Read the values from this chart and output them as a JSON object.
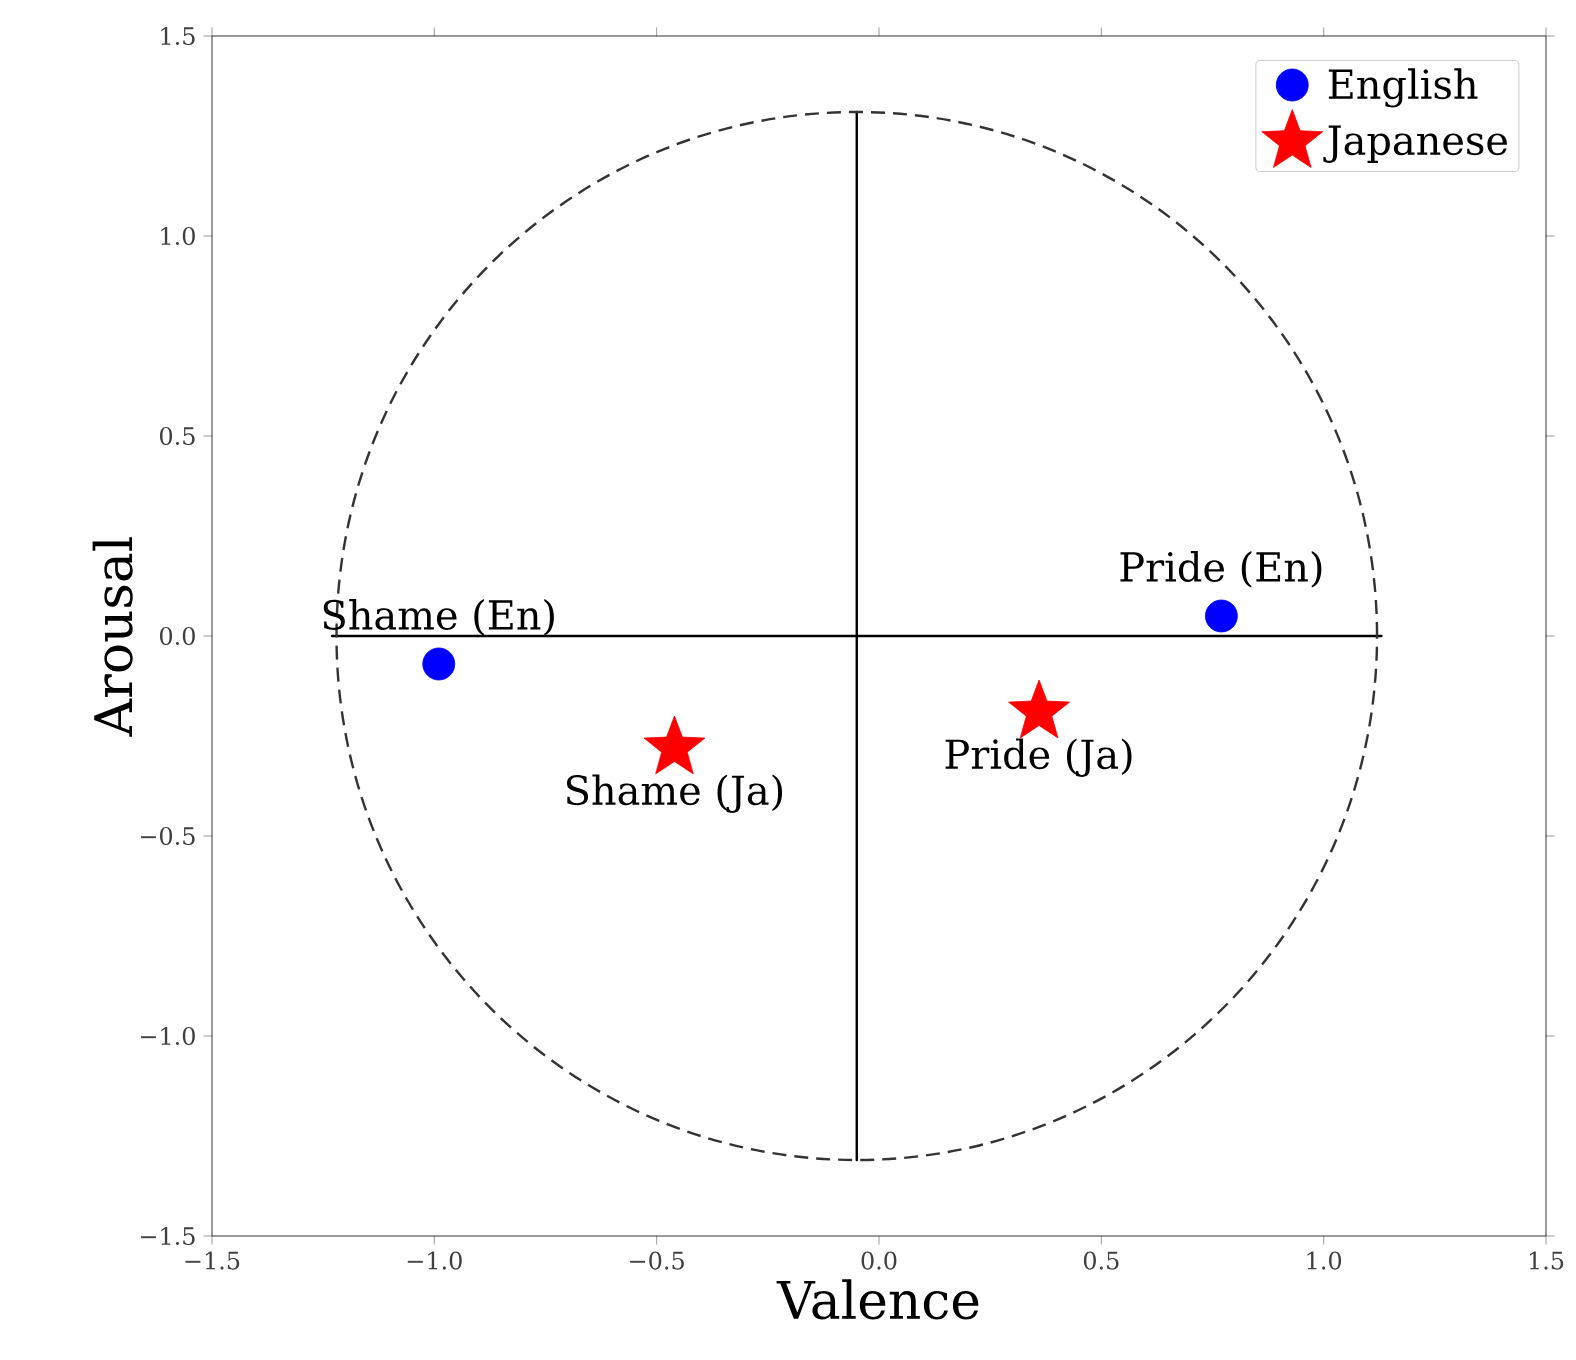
{
  "chart_data": {
    "type": "scatter",
    "xlabel": "Valence",
    "ylabel": "Arousal",
    "xlim": [
      -1.5,
      1.5
    ],
    "ylim": [
      -1.5,
      1.5
    ],
    "xticks": [
      {
        "value": -1.5,
        "label": "−1.5"
      },
      {
        "value": -1.0,
        "label": "−1.0"
      },
      {
        "value": -0.5,
        "label": "−0.5"
      },
      {
        "value": 0,
        "label": "0.0"
      },
      {
        "value": 0.5,
        "label": "0.5"
      },
      {
        "value": 1.0,
        "label": "1.0"
      },
      {
        "value": 1.5,
        "label": "1.5"
      }
    ],
    "yticks": [
      {
        "value": -1.5,
        "label": "−1.5"
      },
      {
        "value": -1.0,
        "label": "−1.0"
      },
      {
        "value": -0.5,
        "label": "−0.5"
      },
      {
        "value": 0,
        "label": "0.0"
      },
      {
        "value": 0.5,
        "label": "0.5"
      },
      {
        "value": 1.0,
        "label": "1.0"
      },
      {
        "value": 1.5,
        "label": "1.5"
      }
    ],
    "grid": false,
    "legend": "top right",
    "series": [
      {
        "name": "English",
        "color": "#0000ff",
        "marker": "circle",
        "x": [
          -0.99,
          0.77
        ],
        "values": [
          -0.07,
          0.05
        ]
      },
      {
        "name": "Japanese",
        "color": "#ff0000",
        "marker": "star",
        "x": [
          -0.46,
          0.36
        ],
        "values": [
          -0.28,
          -0.19
        ]
      },
      {
        "type": "line",
        "color": "#000000",
        "line_style": "solid",
        "x": [
          -0.05,
          -0.05
        ],
        "values": [
          1.31,
          -1.31
        ]
      },
      {
        "type": "line",
        "color": "#000000",
        "line_style": "solid",
        "x": [
          -1.23,
          1.13
        ],
        "values": [
          0,
          0
        ]
      }
    ],
    "annotations": [
      {
        "text": "Shame (En)",
        "x": -0.99,
        "y": -0.07
      },
      {
        "text": "Pride (En)",
        "x": 0.77,
        "y": 0.05
      },
      {
        "text": "Shame (Ja)",
        "x": -0.46,
        "y": -0.28
      },
      {
        "text": "Pride (Ja)",
        "x": 0.36,
        "y": -0.19
      }
    ]
  }
}
